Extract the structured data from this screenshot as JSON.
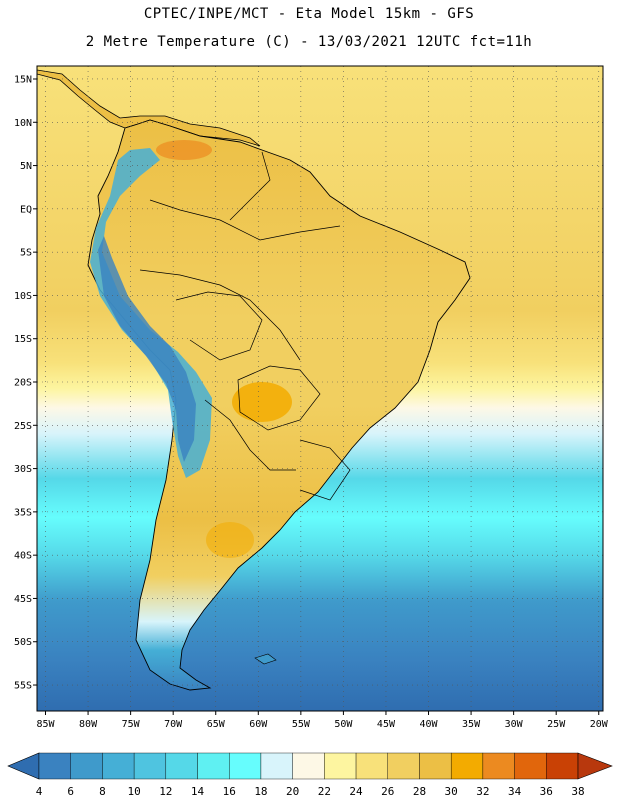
{
  "header": {
    "line1": "CPTEC/INPE/MCT -  Eta Model 15km - GFS",
    "line2": "2 Metre Temperature (C) - 13/03/2021 12UTC fct=11h"
  },
  "map": {
    "lon_range": [
      -86,
      -19.5
    ],
    "lat_range": [
      -58,
      16.5
    ],
    "lon_ticks": [
      {
        "value": -85,
        "label": "85W"
      },
      {
        "value": -80,
        "label": "80W"
      },
      {
        "value": -75,
        "label": "75W"
      },
      {
        "value": -70,
        "label": "70W"
      },
      {
        "value": -65,
        "label": "65W"
      },
      {
        "value": -60,
        "label": "60W"
      },
      {
        "value": -55,
        "label": "55W"
      },
      {
        "value": -50,
        "label": "50W"
      },
      {
        "value": -45,
        "label": "45W"
      },
      {
        "value": -40,
        "label": "40W"
      },
      {
        "value": -35,
        "label": "35W"
      },
      {
        "value": -30,
        "label": "30W"
      },
      {
        "value": -25,
        "label": "25W"
      },
      {
        "value": -20,
        "label": "20W"
      }
    ],
    "lat_ticks": [
      {
        "value": 15,
        "label": "15N"
      },
      {
        "value": 10,
        "label": "10N"
      },
      {
        "value": 5,
        "label": "5N"
      },
      {
        "value": 0,
        "label": "EQ"
      },
      {
        "value": -5,
        "label": "5S"
      },
      {
        "value": -10,
        "label": "10S"
      },
      {
        "value": -15,
        "label": "15S"
      },
      {
        "value": -20,
        "label": "20S"
      },
      {
        "value": -25,
        "label": "25S"
      },
      {
        "value": -30,
        "label": "30S"
      },
      {
        "value": -35,
        "label": "35S"
      },
      {
        "value": -40,
        "label": "40S"
      },
      {
        "value": -45,
        "label": "45S"
      },
      {
        "value": -50,
        "label": "50S"
      },
      {
        "value": -55,
        "label": "55S"
      }
    ]
  },
  "colorbar": {
    "unit": "C",
    "labels": [
      "4",
      "6",
      "8",
      "10",
      "12",
      "14",
      "16",
      "18",
      "20",
      "22",
      "24",
      "26",
      "28",
      "30",
      "32",
      "34",
      "36",
      "38"
    ],
    "colors": [
      "#2f6db0",
      "#3a82c0",
      "#3f9acb",
      "#45afd6",
      "#4fc4e0",
      "#55d8e8",
      "#5ff0f2",
      "#66fdfd",
      "#d8f4fb",
      "#fdf8e6",
      "#fdf5a0",
      "#f8e17a",
      "#f1cf60",
      "#ecbf45",
      "#f3ab00",
      "#ec8a20",
      "#e1660c",
      "#c94105",
      "#b8380d"
    ]
  }
}
